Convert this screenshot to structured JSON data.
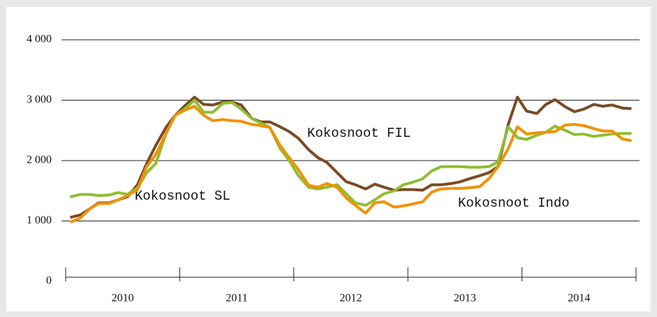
{
  "chart_data": {
    "type": "line",
    "x": [
      2010.04,
      2010.13,
      2010.21,
      2010.29,
      2010.38,
      2010.46,
      2010.54,
      2010.63,
      2010.71,
      2010.79,
      2010.88,
      2010.96,
      2011.04,
      2011.13,
      2011.21,
      2011.29,
      2011.38,
      2011.46,
      2011.54,
      2011.63,
      2011.71,
      2011.79,
      2011.88,
      2011.96,
      2012.04,
      2012.13,
      2012.21,
      2012.29,
      2012.38,
      2012.46,
      2012.54,
      2012.63,
      2012.71,
      2012.79,
      2012.88,
      2012.96,
      2013.04,
      2013.13,
      2013.21,
      2013.29,
      2013.38,
      2013.46,
      2013.54,
      2013.63,
      2013.71,
      2013.79,
      2013.88,
      2013.96,
      2014.04,
      2014.13,
      2014.21,
      2014.29,
      2014.38,
      2014.46,
      2014.54,
      2014.63,
      2014.71,
      2014.79,
      2014.88,
      2014.96
    ],
    "xlim": [
      2010,
      2015
    ],
    "xticks": [
      2010,
      2011,
      2012,
      2013,
      2014,
      2015
    ],
    "categories": [
      "2010",
      "2011",
      "2012",
      "2013",
      "2014"
    ],
    "ylim": [
      0,
      4000
    ],
    "yticks": [
      0,
      {
        "value": 1000,
        "label": "1 000"
      },
      {
        "value": 2000,
        "label": "2 000"
      },
      {
        "value": 3000,
        "label": "3 000"
      },
      {
        "value": 4000,
        "label": "4 000"
      }
    ],
    "grid": true,
    "series": [
      {
        "name": "Kokosnoot FIL",
        "color": "#7b4a22",
        "values": [
          1060,
          1100,
          1200,
          1300,
          1300,
          1350,
          1400,
          1600,
          1950,
          2250,
          2550,
          2750,
          2900,
          3050,
          2930,
          2920,
          2970,
          2970,
          2920,
          2700,
          2640,
          2640,
          2560,
          2480,
          2370,
          2180,
          2050,
          1970,
          1800,
          1650,
          1600,
          1530,
          1610,
          1560,
          1510,
          1520,
          1520,
          1510,
          1600,
          1600,
          1620,
          1650,
          1700,
          1750,
          1800,
          1900,
          2600,
          3050,
          2820,
          2780,
          2930,
          3010,
          2890,
          2810,
          2850,
          2930,
          2900,
          2920,
          2870,
          2860
        ]
      },
      {
        "name": "Kokosnoot SL",
        "color": "#8dbf2e",
        "values": [
          1400,
          1440,
          1440,
          1420,
          1430,
          1470,
          1440,
          1550,
          1800,
          1950,
          2450,
          2750,
          2850,
          3000,
          2800,
          2800,
          2950,
          2960,
          2850,
          2700,
          2620,
          2550,
          2200,
          2000,
          1750,
          1560,
          1530,
          1560,
          1600,
          1450,
          1300,
          1260,
          1350,
          1450,
          1500,
          1600,
          1640,
          1700,
          1830,
          1900,
          1900,
          1900,
          1890,
          1890,
          1900,
          1980,
          2560,
          2380,
          2350,
          2420,
          2470,
          2570,
          2500,
          2430,
          2440,
          2400,
          2420,
          2440,
          2450,
          2450
        ]
      },
      {
        "name": "Kokosnoot Indo",
        "color": "#f39200",
        "values": [
          980,
          1050,
          1200,
          1290,
          1290,
          1350,
          1420,
          1520,
          1900,
          2100,
          2450,
          2750,
          2830,
          2900,
          2750,
          2660,
          2680,
          2660,
          2650,
          2600,
          2580,
          2550,
          2250,
          2050,
          1850,
          1590,
          1560,
          1620,
          1560,
          1380,
          1260,
          1130,
          1300,
          1320,
          1230,
          1250,
          1280,
          1320,
          1480,
          1530,
          1540,
          1540,
          1550,
          1570,
          1700,
          1900,
          2200,
          2560,
          2440,
          2460,
          2470,
          2480,
          2590,
          2600,
          2580,
          2530,
          2490,
          2490,
          2360,
          2330
        ]
      }
    ]
  }
}
